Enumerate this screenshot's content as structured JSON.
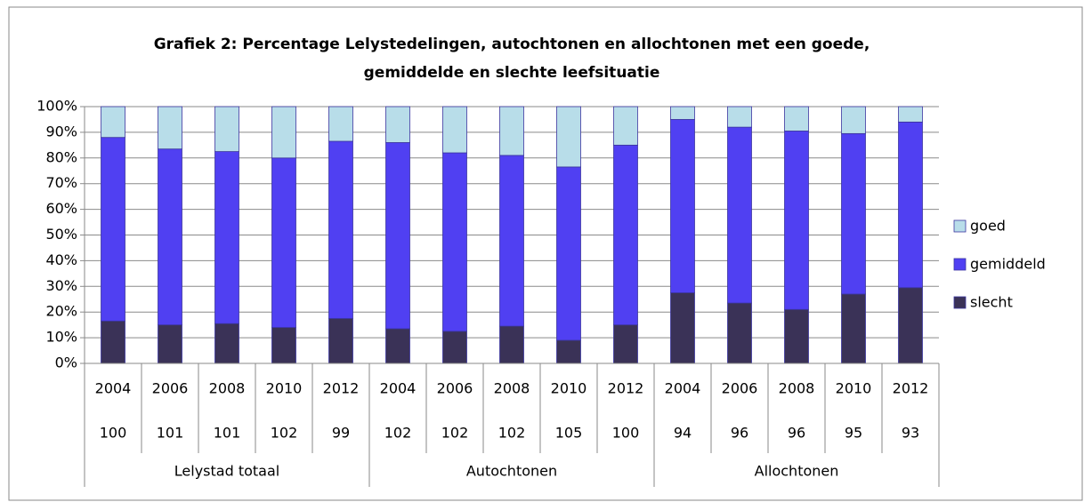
{
  "chart_data": {
    "type": "stacked_bar",
    "title_lines": [
      "Grafiek 2: Percentage Lelystedelingen, autochtonen en allochtonen met een goede,",
      "gemiddelde en slechte leefsituatie"
    ],
    "groups": [
      {
        "name": "Lelystad totaal",
        "categories": [
          "2004",
          "2006",
          "2008",
          "2010",
          "2012"
        ],
        "counts": [
          100,
          101,
          101,
          102,
          99
        ]
      },
      {
        "name": "Autochtonen",
        "categories": [
          "2004",
          "2006",
          "2008",
          "2010",
          "2012"
        ],
        "counts": [
          102,
          102,
          102,
          105,
          100
        ]
      },
      {
        "name": "Allochtonen",
        "categories": [
          "2004",
          "2006",
          "2008",
          "2010",
          "2012"
        ],
        "counts": [
          94,
          96,
          96,
          95,
          93
        ]
      }
    ],
    "series": [
      {
        "name": "slecht",
        "color": "#3a3257",
        "values": [
          16.5,
          15,
          15.5,
          14,
          17.5,
          13.5,
          12.5,
          14.5,
          9,
          15,
          27.5,
          23.5,
          21,
          27,
          29.5
        ]
      },
      {
        "name": "gemiddeld",
        "color": "#5040f2",
        "values": [
          71.5,
          68.5,
          67,
          66,
          69,
          72.5,
          69.5,
          66.5,
          67.5,
          70,
          67.5,
          68.5,
          69.5,
          62.5,
          64.5
        ]
      },
      {
        "name": "goed",
        "color": "#b8dde9",
        "values": [
          12,
          16.5,
          17.5,
          20,
          13.5,
          14,
          18,
          19,
          23.5,
          15,
          5,
          8,
          9.5,
          10.5,
          6
        ]
      }
    ],
    "ylim": [
      0,
      100
    ],
    "yticks": [
      {
        "value": 0,
        "label": "0%"
      },
      {
        "value": 10,
        "label": "10%"
      },
      {
        "value": 20,
        "label": "20%"
      },
      {
        "value": 30,
        "label": "30%"
      },
      {
        "value": 40,
        "label": "40%"
      },
      {
        "value": 50,
        "label": "50%"
      },
      {
        "value": 60,
        "label": "60%"
      },
      {
        "value": 70,
        "label": "70%"
      },
      {
        "value": 80,
        "label": "80%"
      },
      {
        "value": 90,
        "label": "90%"
      },
      {
        "value": 100,
        "label": "100%"
      }
    ],
    "grid": true,
    "legend": "right"
  }
}
